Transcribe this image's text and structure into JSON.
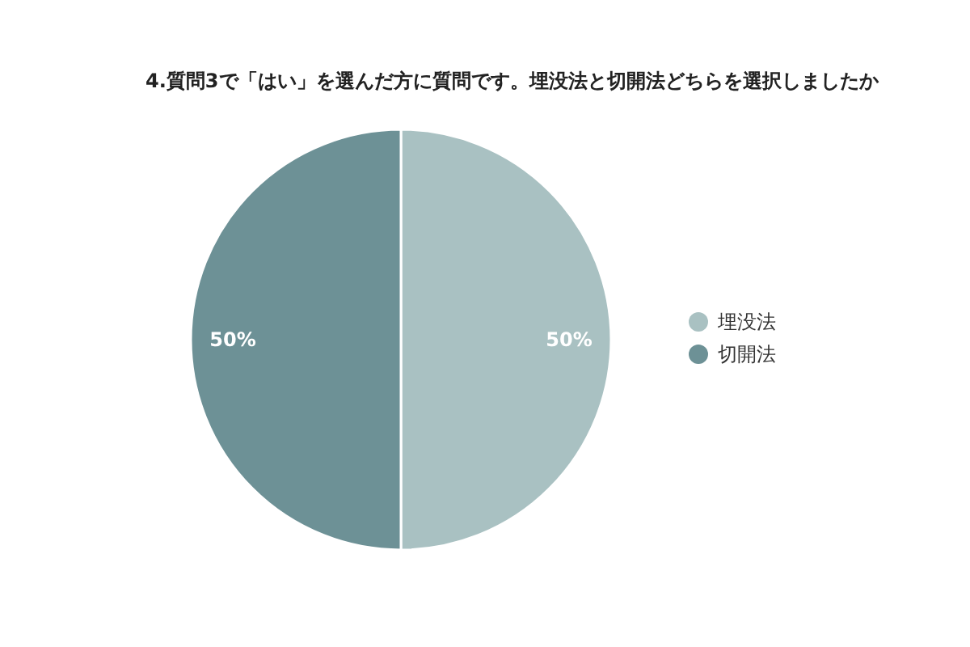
{
  "chart_data": {
    "type": "pie",
    "title": "4.質問3で「はい」を選んだ方に質問です。埋没法と切開法どちらを選択しましたか",
    "categories": [
      "埋没法",
      "切開法"
    ],
    "values": [
      50,
      50
    ],
    "colors": [
      "#a9c1c2",
      "#6d9196"
    ],
    "value_labels": [
      "50%",
      "50%"
    ],
    "legend": "right"
  }
}
